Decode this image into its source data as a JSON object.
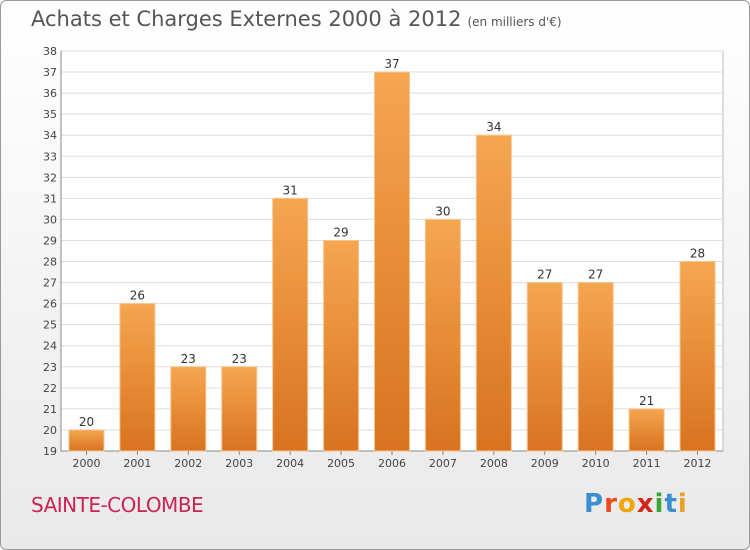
{
  "title": "Achats et Charges Externes 2000 à 2012",
  "subtitle": "(en milliers d'€)",
  "place": "SAINTE-COLOMBE",
  "brand": {
    "letters": [
      "P",
      "r",
      "o",
      "x",
      "i",
      "t",
      "i"
    ],
    "colors": [
      "#3a8fd0",
      "#e84a1b",
      "#f0a500",
      "#d1261c",
      "#39a935",
      "#3a8fd0",
      "#e8a321"
    ]
  },
  "colors": {
    "bar_top": "#f5a650",
    "bar_bottom": "#d9731f",
    "title": "#555555",
    "place": "#cc2255"
  },
  "chart_data": {
    "type": "bar",
    "title": "Achats et Charges Externes 2000 à 2012",
    "subtitle": "(en milliers d'€)",
    "categories": [
      "2000",
      "2001",
      "2002",
      "2003",
      "2004",
      "2005",
      "2006",
      "2007",
      "2008",
      "2009",
      "2010",
      "2011",
      "2012"
    ],
    "values": [
      20,
      26,
      23,
      23,
      31,
      29,
      37,
      30,
      34,
      27,
      27,
      21,
      28
    ],
    "ylim": [
      19,
      38
    ],
    "yticks": [
      19,
      20,
      21,
      22,
      23,
      24,
      25,
      26,
      27,
      28,
      29,
      30,
      31,
      32,
      33,
      34,
      35,
      36,
      37,
      38
    ],
    "grid": true,
    "xlabel": "",
    "ylabel": ""
  }
}
